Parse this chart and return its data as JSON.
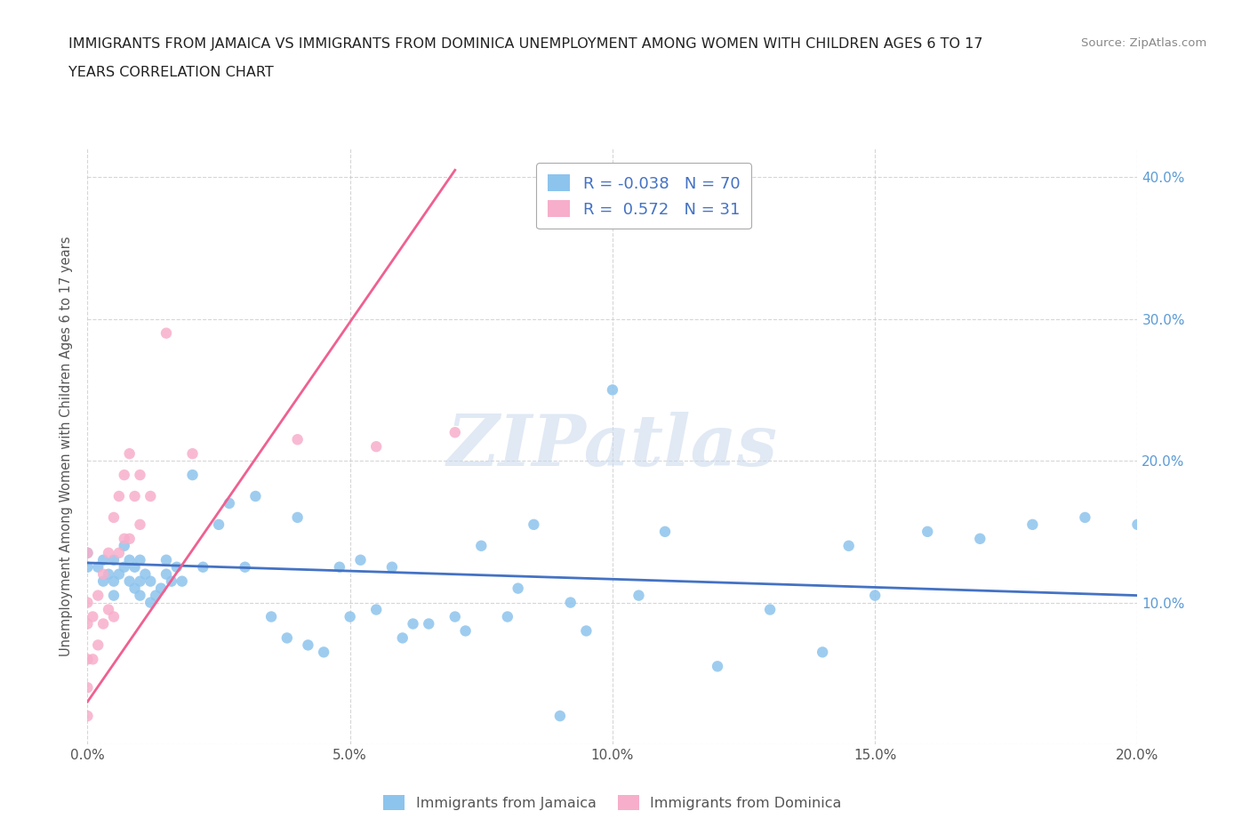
{
  "title_line1": "IMMIGRANTS FROM JAMAICA VS IMMIGRANTS FROM DOMINICA UNEMPLOYMENT AMONG WOMEN WITH CHILDREN AGES 6 TO 17",
  "title_line2": "YEARS CORRELATION CHART",
  "source": "Source: ZipAtlas.com",
  "ylabel": "Unemployment Among Women with Children Ages 6 to 17 years",
  "xlim": [
    0,
    0.2
  ],
  "ylim": [
    0,
    0.42
  ],
  "xticks": [
    0.0,
    0.05,
    0.1,
    0.15,
    0.2
  ],
  "yticks": [
    0.0,
    0.1,
    0.2,
    0.3,
    0.4
  ],
  "xtick_labels": [
    "0.0%",
    "5.0%",
    "10.0%",
    "15.0%",
    "20.0%"
  ],
  "right_ytick_labels": [
    "",
    "10.0%",
    "20.0%",
    "30.0%",
    "40.0%"
  ],
  "jamaica_color": "#8DC4ED",
  "dominica_color": "#F7AECA",
  "jamaica_line_color": "#4472C4",
  "dominica_line_color": "#F06090",
  "jamaica_R": -0.038,
  "jamaica_N": 70,
  "dominica_R": 0.572,
  "dominica_N": 31,
  "watermark_text": "ZIPatlas",
  "jamaica_scatter_x": [
    0.0,
    0.0,
    0.002,
    0.003,
    0.003,
    0.004,
    0.005,
    0.005,
    0.005,
    0.006,
    0.007,
    0.007,
    0.008,
    0.008,
    0.009,
    0.009,
    0.01,
    0.01,
    0.01,
    0.011,
    0.012,
    0.012,
    0.013,
    0.014,
    0.015,
    0.015,
    0.016,
    0.017,
    0.018,
    0.02,
    0.022,
    0.025,
    0.027,
    0.03,
    0.032,
    0.035,
    0.038,
    0.04,
    0.042,
    0.045,
    0.048,
    0.05,
    0.052,
    0.055,
    0.058,
    0.06,
    0.062,
    0.065,
    0.07,
    0.072,
    0.075,
    0.08,
    0.082,
    0.085,
    0.09,
    0.092,
    0.095,
    0.1,
    0.105,
    0.11,
    0.12,
    0.13,
    0.14,
    0.145,
    0.15,
    0.16,
    0.17,
    0.18,
    0.19,
    0.2
  ],
  "jamaica_scatter_y": [
    0.125,
    0.135,
    0.125,
    0.115,
    0.13,
    0.12,
    0.105,
    0.115,
    0.13,
    0.12,
    0.125,
    0.14,
    0.115,
    0.13,
    0.11,
    0.125,
    0.105,
    0.115,
    0.13,
    0.12,
    0.1,
    0.115,
    0.105,
    0.11,
    0.12,
    0.13,
    0.115,
    0.125,
    0.115,
    0.19,
    0.125,
    0.155,
    0.17,
    0.125,
    0.175,
    0.09,
    0.075,
    0.16,
    0.07,
    0.065,
    0.125,
    0.09,
    0.13,
    0.095,
    0.125,
    0.075,
    0.085,
    0.085,
    0.09,
    0.08,
    0.14,
    0.09,
    0.11,
    0.155,
    0.02,
    0.1,
    0.08,
    0.25,
    0.105,
    0.15,
    0.055,
    0.095,
    0.065,
    0.14,
    0.105,
    0.15,
    0.145,
    0.155,
    0.16,
    0.155
  ],
  "dominica_scatter_x": [
    0.0,
    0.0,
    0.0,
    0.0,
    0.0,
    0.0,
    0.001,
    0.001,
    0.002,
    0.002,
    0.003,
    0.003,
    0.004,
    0.004,
    0.005,
    0.005,
    0.006,
    0.006,
    0.007,
    0.007,
    0.008,
    0.008,
    0.009,
    0.01,
    0.01,
    0.012,
    0.015,
    0.02,
    0.04,
    0.055,
    0.07
  ],
  "dominica_scatter_y": [
    0.02,
    0.04,
    0.06,
    0.085,
    0.1,
    0.135,
    0.06,
    0.09,
    0.07,
    0.105,
    0.085,
    0.12,
    0.095,
    0.135,
    0.09,
    0.16,
    0.135,
    0.175,
    0.145,
    0.19,
    0.145,
    0.205,
    0.175,
    0.155,
    0.19,
    0.175,
    0.29,
    0.205,
    0.215,
    0.21,
    0.22
  ],
  "dominica_trendline_x": [
    0.0,
    0.07
  ],
  "dominica_trendline_y": [
    0.03,
    0.405
  ],
  "jamaica_trendline_x": [
    0.0,
    0.2
  ],
  "jamaica_trendline_y": [
    0.128,
    0.105
  ]
}
